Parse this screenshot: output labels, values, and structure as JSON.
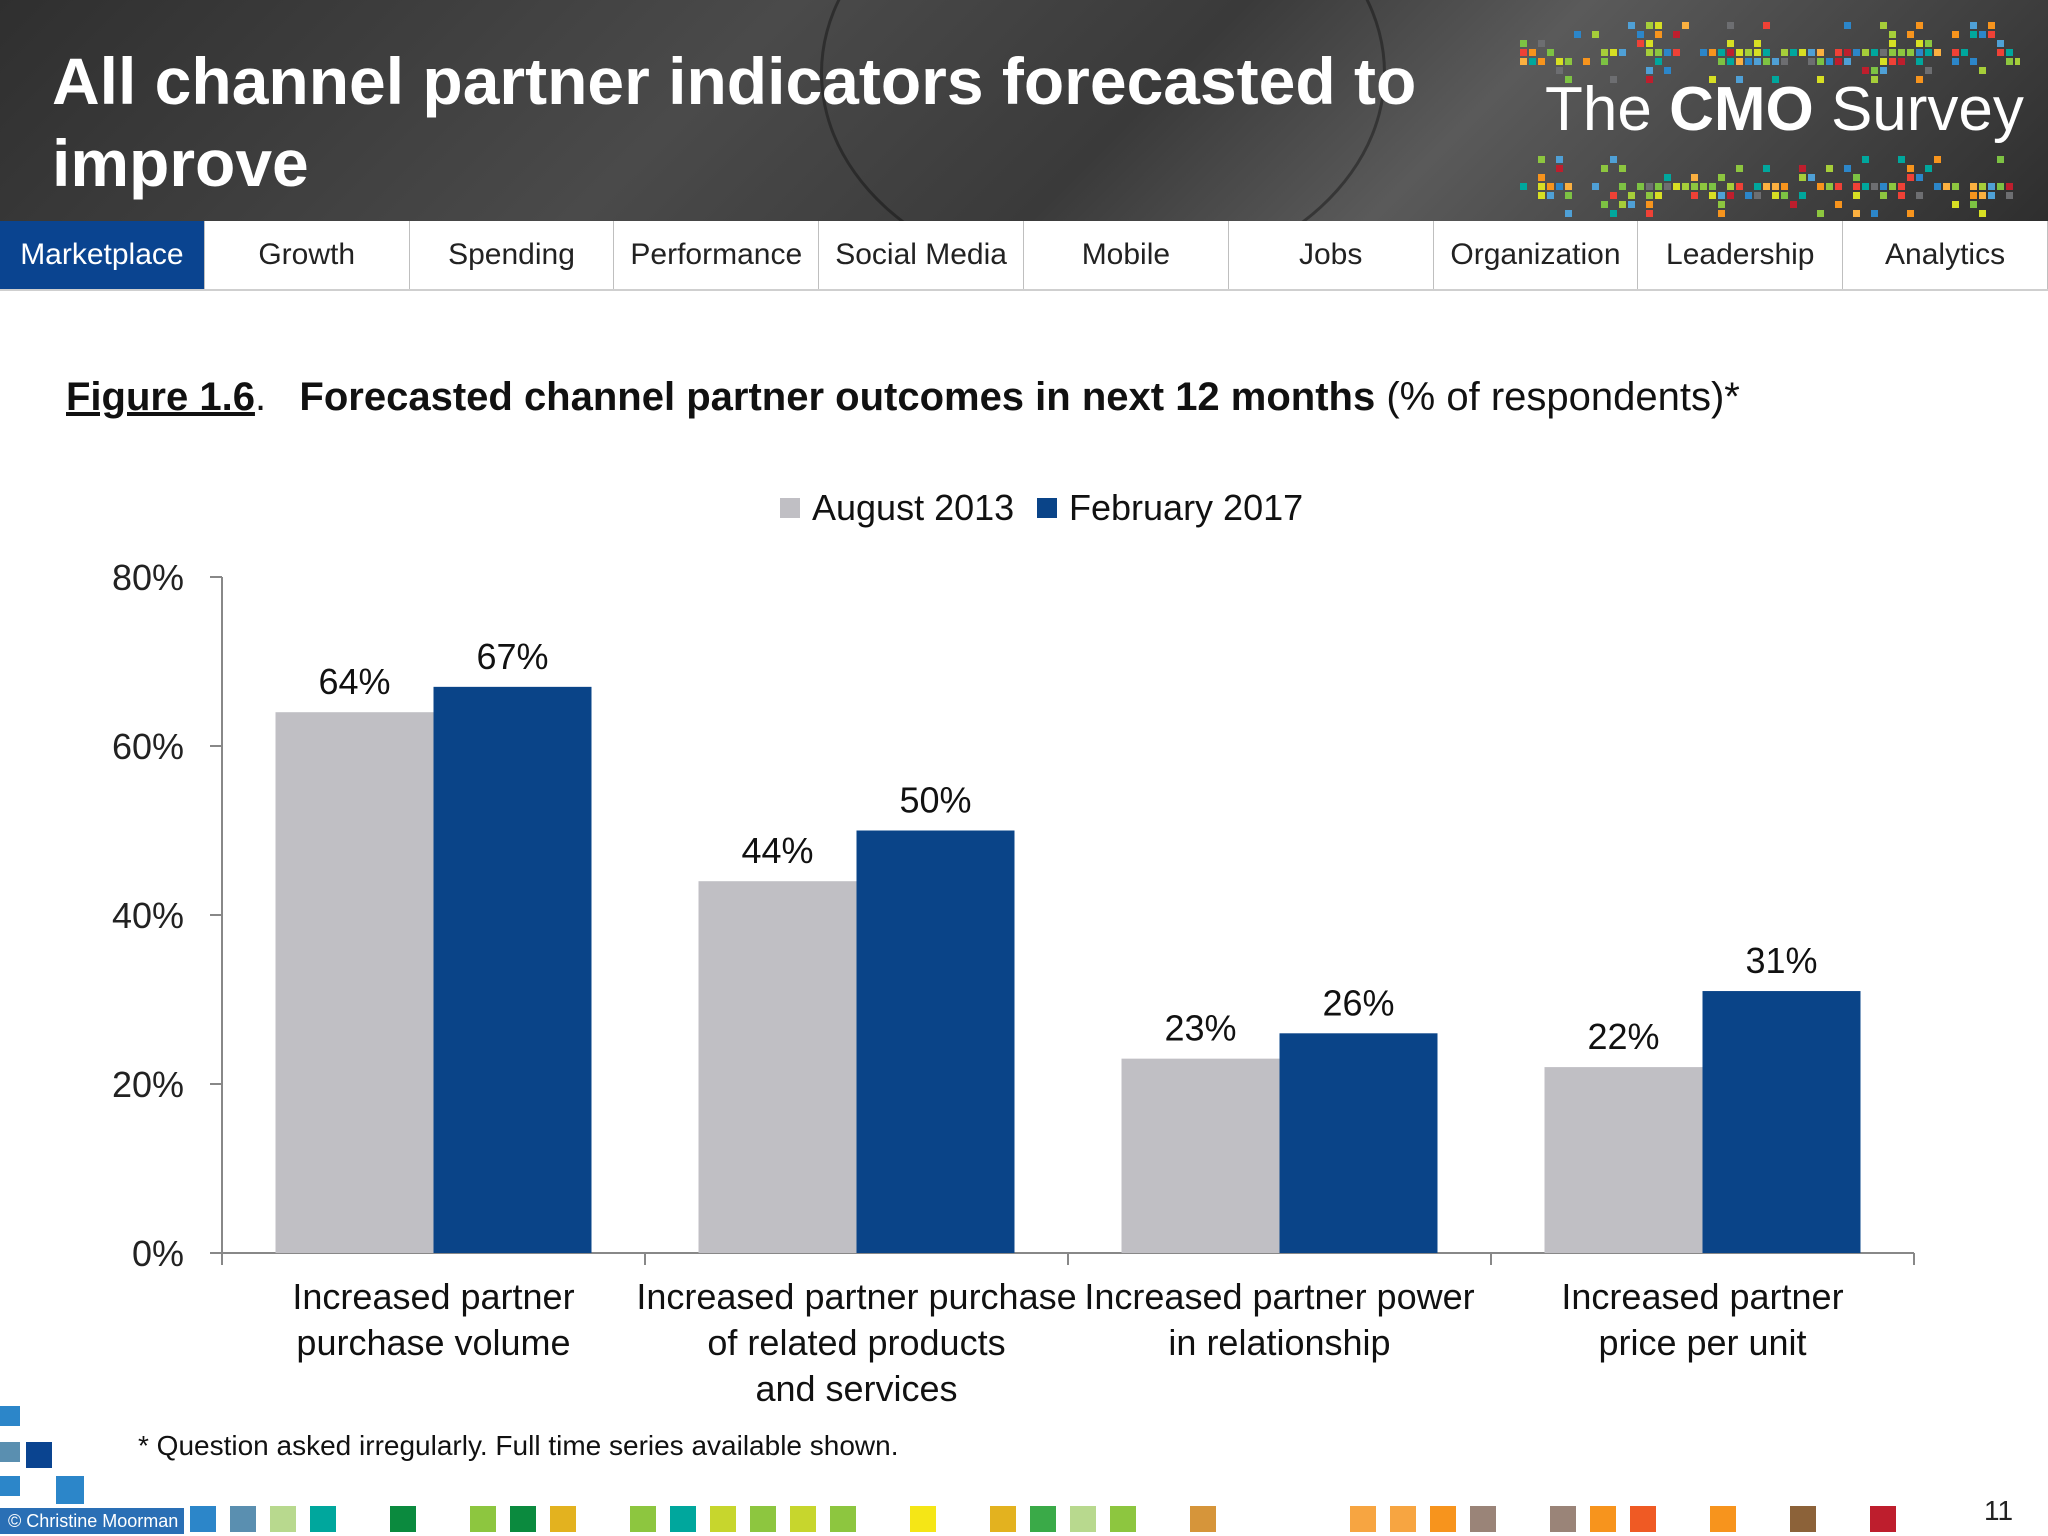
{
  "header": {
    "title": "All channel partner indicators forecasted to improve",
    "logo_prefix": "The ",
    "logo_bold": "CMO",
    "logo_suffix": " Survey"
  },
  "nav": {
    "tabs": [
      {
        "label": "Marketplace",
        "active": true
      },
      {
        "label": "Growth",
        "active": false
      },
      {
        "label": "Spending",
        "active": false
      },
      {
        "label": "Performance",
        "active": false
      },
      {
        "label": "Social Media",
        "active": false
      },
      {
        "label": "Mobile",
        "active": false
      },
      {
        "label": "Jobs",
        "active": false
      },
      {
        "label": "Organization",
        "active": false
      },
      {
        "label": "Leadership",
        "active": false
      },
      {
        "label": "Analytics",
        "active": false
      }
    ]
  },
  "figure": {
    "number": "Figure 1.6",
    "title_bold": "Forecasted channel partner outcomes in next 12 months",
    "title_rest": " (% of respondents)*"
  },
  "footnote": "* Question asked irregularly. Full time series available shown.",
  "copyright": "© Christine Moorman",
  "page_number": "11",
  "chart_data": {
    "type": "bar",
    "categories": [
      [
        "Increased partner",
        "purchase volume"
      ],
      [
        "Increased partner purchase",
        "of related products",
        "and services"
      ],
      [
        "Increased partner power",
        "in relationship"
      ],
      [
        "Increased partner",
        "price per unit"
      ]
    ],
    "series": [
      {
        "name": "August 2013",
        "color": "#c0bfc4",
        "values": [
          64,
          44,
          23,
          22
        ],
        "labels": [
          "64%",
          "44%",
          "23%",
          "22%"
        ]
      },
      {
        "name": "February 2017",
        "color": "#0a4488",
        "values": [
          67,
          50,
          26,
          31
        ],
        "labels": [
          "67%",
          "50%",
          "26%",
          "31%"
        ]
      }
    ],
    "ylim": [
      0,
      80
    ],
    "yticks": [
      0,
      20,
      40,
      60,
      80
    ],
    "ytick_labels": [
      "0%",
      "20%",
      "40%",
      "60%",
      "80%"
    ],
    "legend_position": "top-center",
    "grid": false
  }
}
